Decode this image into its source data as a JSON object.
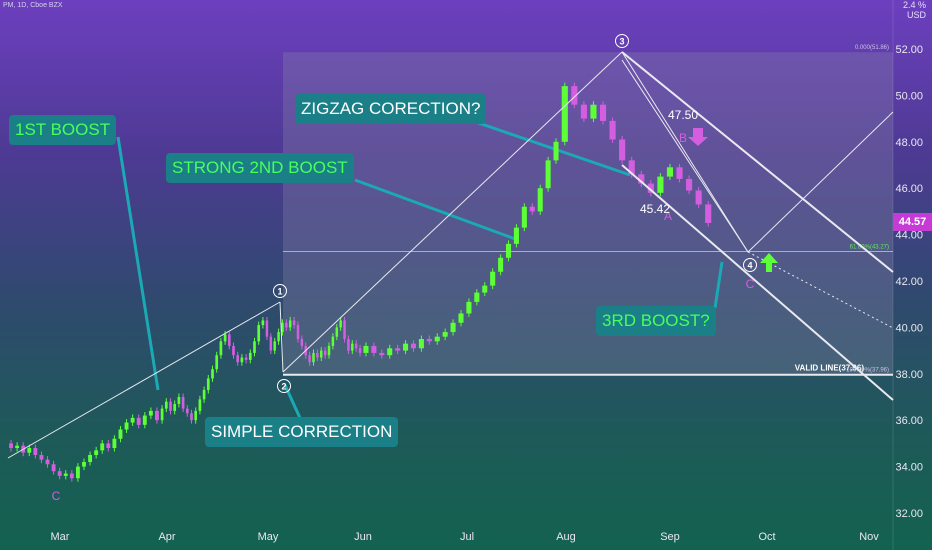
{
  "header": {
    "symbol": "PM, 1D, Cboe BZX",
    "unit": "USD",
    "unit_top": "2.4 %"
  },
  "last_price": "44.57",
  "colors": {
    "up": "#5dff36",
    "down": "#d35fe0",
    "line": "#e9e9f0",
    "level": "#60e860",
    "zone": "#8a86a8"
  },
  "annotations": {
    "boost1": "1ST BOOST",
    "boost2": "STRONG 2ND BOOST",
    "zigzag": "ZIGZAG CORECTION?",
    "simple": "SIMPLE CORRECTION",
    "boost3": "3RD BOOST?",
    "valid_line": "VALID LINE(37.96)",
    "fib0": "0.000(51.86)",
    "fib618": "61.80%(43.27)",
    "fib100": "100.00%(37.96)",
    "val_a": "45.42",
    "val_b": "47.50",
    "wave_labels": [
      "1",
      "2",
      "3",
      "4"
    ],
    "abc": [
      "C",
      "A",
      "B",
      "C"
    ]
  },
  "chart_data": {
    "type": "candlestick",
    "y_ticks": [
      "52.00",
      "50.00",
      "48.00",
      "46.00",
      "44.00",
      "42.00",
      "40.00",
      "38.00",
      "36.00",
      "34.00",
      "32.00"
    ],
    "x_ticks": [
      "Mar",
      "Apr",
      "May",
      "Jun",
      "Jul",
      "Aug",
      "Sep",
      "Oct",
      "Nov"
    ],
    "ylim": [
      31.5,
      52.5
    ],
    "levels": [
      {
        "name": "valid-line",
        "value": 37.96
      },
      {
        "name": "fib-61.8",
        "value": 43.27
      },
      {
        "name": "fib-0",
        "value": 51.86
      }
    ],
    "candles": [
      [
        [
          35,
          34.8
        ],
        [
          34.8,
          34.9
        ],
        [
          34.9,
          34.6
        ],
        [
          34.6,
          34.8
        ],
        [
          34.8,
          34.5
        ],
        [
          34.5,
          34.3
        ],
        [
          34.3,
          34.1
        ],
        [
          34.1,
          33.8
        ],
        [
          33.8,
          33.6
        ],
        [
          33.6,
          33.7
        ],
        [
          33.7,
          33.5
        ],
        [
          33.5,
          34.0
        ],
        [
          34.0,
          34.2
        ],
        [
          34.2,
          34.5
        ],
        [
          34.5,
          34.7
        ],
        [
          34.7,
          35.0
        ],
        [
          35.0,
          34.8
        ],
        [
          34.8,
          35.2
        ],
        [
          35.2,
          35.6
        ],
        [
          35.6,
          35.9
        ],
        [
          35.9,
          36.1
        ],
        [
          36.1,
          35.8
        ],
        [
          35.8,
          36.2
        ],
        [
          36.2,
          36.4
        ],
        [
          36.4,
          36.0
        ]
      ],
      [
        [
          36.0,
          36.5
        ],
        [
          36.5,
          36.8
        ],
        [
          36.8,
          36.4
        ],
        [
          36.4,
          36.7
        ],
        [
          36.7,
          37.0
        ],
        [
          37.0,
          36.5
        ],
        [
          36.5,
          36.3
        ],
        [
          36.3,
          36.0
        ],
        [
          36.0,
          36.4
        ],
        [
          36.4,
          36.9
        ],
        [
          36.9,
          37.3
        ],
        [
          37.3,
          37.8
        ],
        [
          37.8,
          38.2
        ],
        [
          38.2,
          38.8
        ],
        [
          38.8,
          39.4
        ],
        [
          39.4,
          39.7
        ],
        [
          39.7,
          39.2
        ],
        [
          39.2,
          38.8
        ],
        [
          38.8,
          38.5
        ],
        [
          38.5,
          38.7
        ],
        [
          38.7,
          38.6
        ],
        [
          38.6,
          38.9
        ],
        [
          38.9,
          39.4
        ],
        [
          39.4,
          40.1
        ],
        [
          40.1,
          40.3
        ]
      ],
      [
        [
          40.3,
          39.6
        ],
        [
          39.6,
          39.0
        ],
        [
          39.0,
          39.4
        ],
        [
          39.4,
          39.8
        ],
        [
          39.8,
          40.2
        ],
        [
          40.2,
          40.0
        ],
        [
          40.0,
          40.3
        ],
        [
          40.3,
          40.1
        ],
        [
          40.1,
          39.5
        ],
        [
          39.5,
          39.2
        ],
        [
          39.2,
          38.8
        ],
        [
          38.8,
          38.5
        ],
        [
          38.5,
          38.9
        ],
        [
          38.9,
          38.7
        ],
        [
          38.7,
          39.0
        ],
        [
          39.0,
          38.8
        ],
        [
          38.8,
          39.2
        ],
        [
          39.2,
          39.6
        ],
        [
          39.6,
          40.0
        ],
        [
          40.0,
          40.3
        ],
        [
          40.3,
          39.5
        ],
        [
          39.5,
          39.0
        ],
        [
          39.0,
          39.3
        ],
        [
          39.3,
          39.1
        ],
        [
          39.1,
          38.9
        ]
      ],
      [
        [
          38.9,
          39.2
        ],
        [
          39.2,
          38.9
        ],
        [
          38.9,
          38.8
        ],
        [
          38.8,
          39.1
        ],
        [
          39.1,
          39.0
        ],
        [
          39.0,
          39.3
        ],
        [
          39.3,
          39.1
        ],
        [
          39.1,
          39.5
        ],
        [
          39.5,
          39.4
        ],
        [
          39.4,
          39.6
        ],
        [
          39.6,
          39.8
        ],
        [
          39.8,
          40.2
        ],
        [
          40.2,
          40.6
        ],
        [
          40.6,
          41.1
        ],
        [
          41.1,
          41.5
        ],
        [
          41.5,
          41.8
        ],
        [
          41.8,
          42.4
        ],
        [
          42.4,
          43.0
        ],
        [
          43.0,
          43.6
        ],
        [
          43.6,
          44.3
        ],
        [
          44.3,
          45.2
        ],
        [
          45.2,
          45.0
        ],
        [
          45.0,
          46.0
        ],
        [
          46.0,
          47.2
        ],
        [
          47.2,
          48.0
        ]
      ],
      [
        [
          48.0,
          50.4
        ],
        [
          50.4,
          49.6
        ],
        [
          49.6,
          49.0
        ],
        [
          49.0,
          49.6
        ],
        [
          49.6,
          48.9
        ],
        [
          48.9,
          48.1
        ],
        [
          48.1,
          47.2
        ],
        [
          47.2,
          46.6
        ],
        [
          46.6,
          46.2
        ],
        [
          46.2,
          45.8
        ],
        [
          45.8,
          46.5
        ],
        [
          46.5,
          46.9
        ],
        [
          46.9,
          46.4
        ],
        [
          46.4,
          45.9
        ],
        [
          45.9,
          45.3
        ],
        [
          45.3,
          44.5
        ]
      ]
    ]
  }
}
